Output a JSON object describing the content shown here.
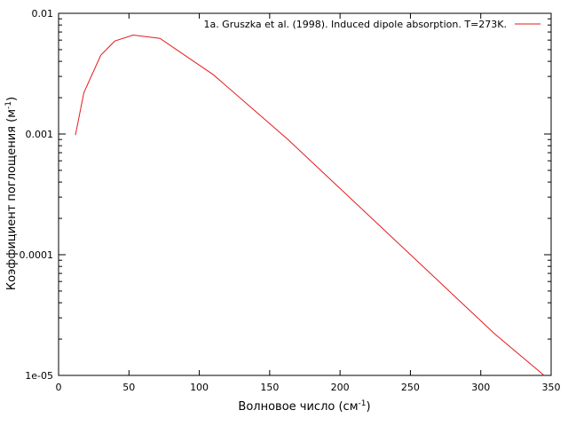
{
  "chart_data": {
    "type": "line",
    "title": "",
    "xlabel": "Волновое число (см",
    "xlabel_unit_sup": "-1",
    "xlabel_tail": ")",
    "ylabel": "Коэффициент поглощения (м",
    "ylabel_unit_sup": "-1",
    "ylabel_tail": ")",
    "xlim": [
      0,
      350
    ],
    "ylim": [
      1e-05,
      0.01
    ],
    "yscale": "log",
    "x_ticks": [
      "0",
      "50",
      "100",
      "150",
      "200",
      "250",
      "300",
      "350"
    ],
    "y_ticks": [
      "1e-05",
      "0.0001",
      "0.001",
      "0.01"
    ],
    "grid": false,
    "legend_position": "top-right",
    "series": [
      {
        "name": "1a. Gruszka et al. (1998). Induced dipole absorption. T=273K.",
        "color": "#e41a1c",
        "x": [
          12,
          18,
          30,
          40,
          53,
          72,
          110,
          163,
          310,
          345
        ],
        "y": [
          0.00098,
          0.0022,
          0.0045,
          0.0059,
          0.0066,
          0.0062,
          0.0031,
          0.0009,
          2.2e-05,
          1e-05
        ]
      }
    ]
  }
}
